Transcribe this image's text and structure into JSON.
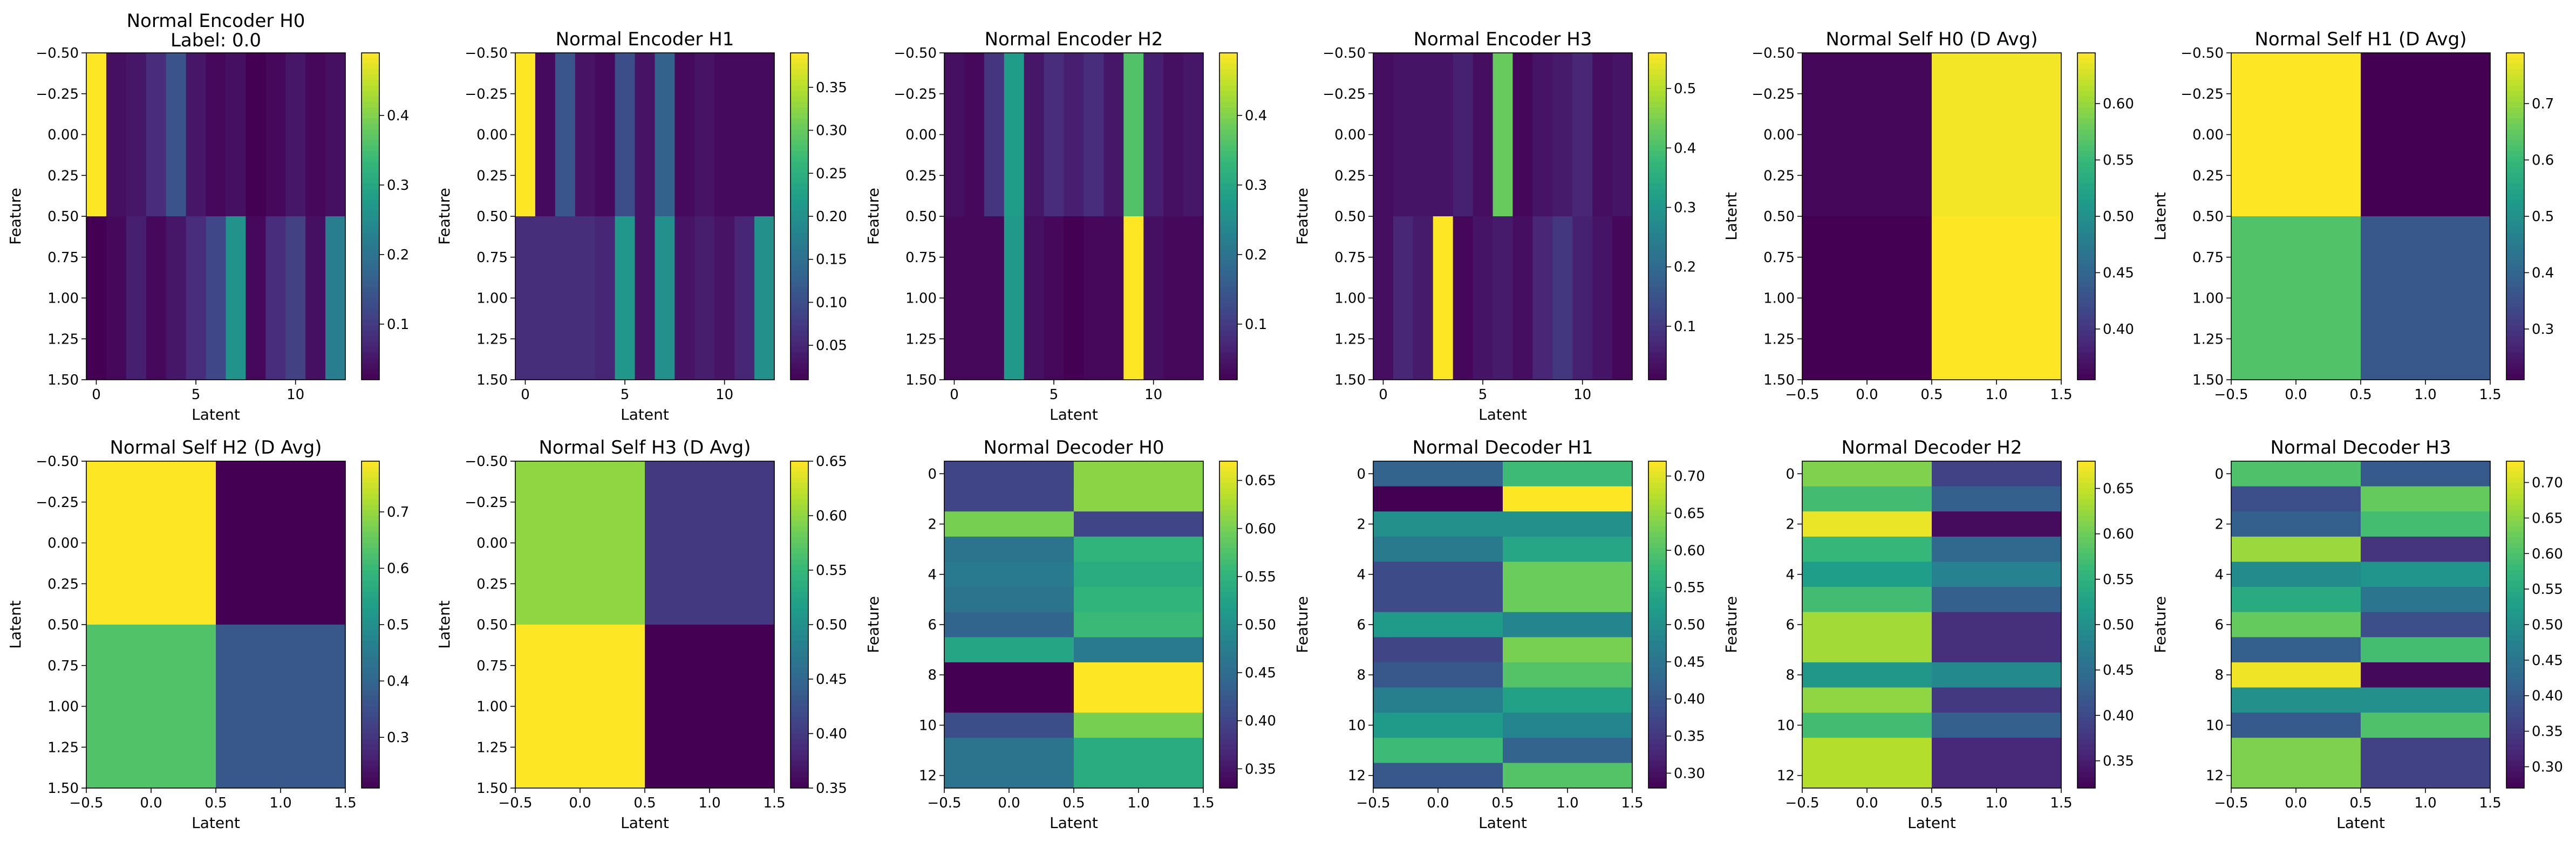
{
  "chart_data": [
    {
      "type": "heatmap",
      "title": "Normal Encoder H0",
      "subtitle": "Label: 0.0",
      "xlabel": "Latent",
      "ylabel": "Feature",
      "xlim": [
        -0.5,
        12.5
      ],
      "ylim": [
        1.5,
        -0.5
      ],
      "xticks": [
        0,
        5,
        10
      ],
      "xticklabels": [
        "0",
        "5",
        "10"
      ],
      "yticks": [
        -0.5,
        -0.25,
        0,
        0.25,
        0.5,
        0.75,
        1,
        1.25,
        1.5
      ],
      "yticklabels": [
        "−0.50",
        "−0.25",
        "0.00",
        "0.25",
        "0.50",
        "0.75",
        "1.00",
        "1.25",
        "1.50"
      ],
      "values": [
        [
          0.49,
          0.04,
          0.05,
          0.08,
          0.14,
          0.05,
          0.03,
          0.04,
          0.02,
          0.03,
          0.05,
          0.03,
          0.04
        ],
        [
          0.02,
          0.03,
          0.06,
          0.03,
          0.05,
          0.08,
          0.12,
          0.26,
          0.03,
          0.08,
          0.11,
          0.04,
          0.22
        ]
      ],
      "vmin": 0.02,
      "vmax": 0.49,
      "cbticks": [
        0.1,
        0.2,
        0.3,
        0.4
      ],
      "cblabels": [
        "0.1",
        "0.2",
        "0.3",
        "0.4"
      ]
    },
    {
      "type": "heatmap",
      "title": "Normal Encoder H1",
      "xlabel": "Latent",
      "ylabel": "Feature",
      "xlim": [
        -0.5,
        12.5
      ],
      "ylim": [
        1.5,
        -0.5
      ],
      "xticks": [
        0,
        5,
        10
      ],
      "xticklabels": [
        "0",
        "5",
        "10"
      ],
      "yticks": [
        -0.5,
        -0.25,
        0,
        0.25,
        0.5,
        0.75,
        1,
        1.25,
        1.5
      ],
      "yticklabels": [
        "−0.50",
        "−0.25",
        "0.00",
        "0.25",
        "0.50",
        "0.75",
        "1.00",
        "1.25",
        "1.50"
      ],
      "values": [
        [
          0.39,
          0.02,
          0.11,
          0.03,
          0.02,
          0.1,
          0.03,
          0.13,
          0.02,
          0.03,
          0.02,
          0.02,
          0.02
        ],
        [
          0.06,
          0.06,
          0.06,
          0.06,
          0.05,
          0.21,
          0.03,
          0.2,
          0.03,
          0.04,
          0.03,
          0.05,
          0.2
        ]
      ],
      "vmin": 0.01,
      "vmax": 0.39,
      "cbticks": [
        0.05,
        0.1,
        0.15,
        0.2,
        0.25,
        0.3,
        0.35
      ],
      "cblabels": [
        "0.05",
        "0.10",
        "0.15",
        "0.20",
        "0.25",
        "0.30",
        "0.35"
      ]
    },
    {
      "type": "heatmap",
      "title": "Normal Encoder H2",
      "xlabel": "Latent",
      "ylabel": "Feature",
      "xlim": [
        -0.5,
        12.5
      ],
      "ylim": [
        1.5,
        -0.5
      ],
      "xticks": [
        0,
        5,
        10
      ],
      "xticklabels": [
        "0",
        "5",
        "10"
      ],
      "yticks": [
        -0.5,
        -0.25,
        0,
        0.25,
        0.5,
        0.75,
        1,
        1.25,
        1.5
      ],
      "yticklabels": [
        "−0.50",
        "−0.25",
        "0.00",
        "0.25",
        "0.50",
        "0.75",
        "1.00",
        "1.25",
        "1.50"
      ],
      "values": [
        [
          0.04,
          0.03,
          0.09,
          0.28,
          0.05,
          0.08,
          0.06,
          0.08,
          0.05,
          0.36,
          0.06,
          0.04,
          0.05
        ],
        [
          0.03,
          0.03,
          0.03,
          0.27,
          0.04,
          0.03,
          0.02,
          0.03,
          0.03,
          0.49,
          0.04,
          0.03,
          0.03
        ]
      ],
      "vmin": 0.02,
      "vmax": 0.49,
      "cbticks": [
        0.1,
        0.2,
        0.3,
        0.4
      ],
      "cblabels": [
        "0.1",
        "0.2",
        "0.3",
        "0.4"
      ]
    },
    {
      "type": "heatmap",
      "title": "Normal Encoder H3",
      "xlabel": "Latent",
      "ylabel": "Feature",
      "xlim": [
        -0.5,
        12.5
      ],
      "ylim": [
        1.5,
        -0.5
      ],
      "xticks": [
        0,
        5,
        10
      ],
      "xticklabels": [
        "0",
        "5",
        "10"
      ],
      "yticks": [
        -0.5,
        -0.25,
        0,
        0.25,
        0.5,
        0.75,
        1,
        1.25,
        1.5
      ],
      "yticklabels": [
        "−0.50",
        "−0.25",
        "0.00",
        "0.25",
        "0.50",
        "0.75",
        "1.00",
        "1.25",
        "1.50"
      ],
      "values": [
        [
          0.03,
          0.04,
          0.04,
          0.04,
          0.06,
          0.03,
          0.43,
          0.02,
          0.04,
          0.05,
          0.07,
          0.03,
          0.04
        ],
        [
          0.03,
          0.07,
          0.05,
          0.56,
          0.02,
          0.04,
          0.05,
          0.03,
          0.07,
          0.1,
          0.06,
          0.04,
          0.02
        ]
      ],
      "vmin": 0.01,
      "vmax": 0.56,
      "cbticks": [
        0.1,
        0.2,
        0.3,
        0.4,
        0.5
      ],
      "cblabels": [
        "0.1",
        "0.2",
        "0.3",
        "0.4",
        "0.5"
      ]
    },
    {
      "type": "heatmap",
      "title": "Normal Self H0 (D Avg)",
      "xlabel": "",
      "ylabel": "Latent",
      "xlim": [
        -0.5,
        1.5
      ],
      "ylim": [
        1.5,
        -0.5
      ],
      "xticks": [
        -0.5,
        0,
        0.5,
        1,
        1.5
      ],
      "xticklabels": [
        "−0.5",
        "0.0",
        "0.5",
        "1.0",
        "1.5"
      ],
      "yticks": [
        -0.5,
        -0.25,
        0,
        0.25,
        0.5,
        0.75,
        1,
        1.25,
        1.5
      ],
      "yticklabels": [
        "−0.50",
        "−0.25",
        "0.00",
        "0.25",
        "0.50",
        "0.75",
        "1.00",
        "1.25",
        "1.50"
      ],
      "values": [
        [
          0.36,
          0.64
        ],
        [
          0.355,
          0.645
        ]
      ],
      "vmin": 0.355,
      "vmax": 0.645,
      "cbticks": [
        0.4,
        0.45,
        0.5,
        0.55,
        0.6
      ],
      "cblabels": [
        "0.40",
        "0.45",
        "0.50",
        "0.55",
        "0.60"
      ]
    },
    {
      "type": "heatmap",
      "title": "Normal Self H1 (D Avg)",
      "xlabel": "",
      "ylabel": "Latent",
      "xlim": [
        -0.5,
        1.5
      ],
      "ylim": [
        1.5,
        -0.5
      ],
      "xticks": [
        -0.5,
        0,
        0.5,
        1,
        1.5
      ],
      "xticklabels": [
        "−0.5",
        "0.0",
        "0.5",
        "1.0",
        "1.5"
      ],
      "yticks": [
        -0.5,
        -0.25,
        0,
        0.25,
        0.5,
        0.75,
        1,
        1.25,
        1.5
      ],
      "yticklabels": [
        "−0.50",
        "−0.25",
        "0.00",
        "0.25",
        "0.50",
        "0.75",
        "1.00",
        "1.25",
        "1.50"
      ],
      "values": [
        [
          0.79,
          0.21
        ],
        [
          0.63,
          0.37
        ]
      ],
      "vmin": 0.21,
      "vmax": 0.79,
      "cbticks": [
        0.3,
        0.4,
        0.5,
        0.6,
        0.7
      ],
      "cblabels": [
        "0.3",
        "0.4",
        "0.5",
        "0.6",
        "0.7"
      ]
    },
    {
      "type": "heatmap",
      "title": "Normal Self H2 (D Avg)",
      "xlabel": "Latent",
      "ylabel": "Latent",
      "xlim": [
        -0.5,
        1.5
      ],
      "ylim": [
        1.5,
        -0.5
      ],
      "xticks": [
        -0.5,
        0,
        0.5,
        1,
        1.5
      ],
      "xticklabels": [
        "−0.5",
        "0.0",
        "0.5",
        "1.0",
        "1.5"
      ],
      "yticks": [
        -0.5,
        -0.25,
        0,
        0.25,
        0.5,
        0.75,
        1,
        1.25,
        1.5
      ],
      "yticklabels": [
        "−0.50",
        "−0.25",
        "0.00",
        "0.25",
        "0.50",
        "0.75",
        "1.00",
        "1.25",
        "1.50"
      ],
      "values": [
        [
          0.79,
          0.21
        ],
        [
          0.63,
          0.37
        ]
      ],
      "vmin": 0.21,
      "vmax": 0.79,
      "cbticks": [
        0.3,
        0.4,
        0.5,
        0.6,
        0.7
      ],
      "cblabels": [
        "0.3",
        "0.4",
        "0.5",
        "0.6",
        "0.7"
      ]
    },
    {
      "type": "heatmap",
      "title": "Normal Self H3 (D Avg)",
      "xlabel": "Latent",
      "ylabel": "Latent",
      "xlim": [
        -0.5,
        1.5
      ],
      "ylim": [
        1.5,
        -0.5
      ],
      "xticks": [
        -0.5,
        0,
        0.5,
        1,
        1.5
      ],
      "xticklabels": [
        "−0.5",
        "0.0",
        "0.5",
        "1.0",
        "1.5"
      ],
      "yticks": [
        -0.5,
        -0.25,
        0,
        0.25,
        0.5,
        0.75,
        1,
        1.25,
        1.5
      ],
      "yticklabels": [
        "−0.50",
        "−0.25",
        "0.00",
        "0.25",
        "0.50",
        "0.75",
        "1.00",
        "1.25",
        "1.50"
      ],
      "values": [
        [
          0.6,
          0.4
        ],
        [
          0.65,
          0.35
        ]
      ],
      "vmin": 0.35,
      "vmax": 0.65,
      "cbticks": [
        0.35,
        0.4,
        0.45,
        0.5,
        0.55,
        0.6,
        0.65
      ],
      "cblabels": [
        "0.35",
        "0.40",
        "0.45",
        "0.50",
        "0.55",
        "0.60",
        "0.65"
      ]
    },
    {
      "type": "heatmap",
      "title": "Normal Decoder H0",
      "xlabel": "Latent",
      "ylabel": "Feature",
      "xlim": [
        -0.5,
        1.5
      ],
      "ylim": [
        12.5,
        -0.5
      ],
      "xticks": [
        -0.5,
        0,
        0.5,
        1,
        1.5
      ],
      "xticklabels": [
        "−0.5",
        "0.0",
        "0.5",
        "1.0",
        "1.5"
      ],
      "yticks": [
        0,
        2,
        4,
        6,
        8,
        10,
        12
      ],
      "yticklabels": [
        "0",
        "2",
        "4",
        "6",
        "8",
        "10",
        "12"
      ],
      "values": [
        [
          0.4,
          0.61
        ],
        [
          0.4,
          0.61
        ],
        [
          0.6,
          0.4
        ],
        [
          0.46,
          0.55
        ],
        [
          0.47,
          0.54
        ],
        [
          0.46,
          0.55
        ],
        [
          0.44,
          0.56
        ],
        [
          0.53,
          0.47
        ],
        [
          0.33,
          0.67
        ],
        [
          0.33,
          0.67
        ],
        [
          0.41,
          0.6
        ],
        [
          0.46,
          0.54
        ],
        [
          0.46,
          0.54
        ]
      ],
      "vmin": 0.33,
      "vmax": 0.67,
      "cbticks": [
        0.35,
        0.4,
        0.45,
        0.5,
        0.55,
        0.6,
        0.65
      ],
      "cblabels": [
        "0.35",
        "0.40",
        "0.45",
        "0.50",
        "0.55",
        "0.60",
        "0.65"
      ]
    },
    {
      "type": "heatmap",
      "title": "Normal Decoder H1",
      "xlabel": "Latent",
      "ylabel": "Feature",
      "xlim": [
        -0.5,
        1.5
      ],
      "ylim": [
        12.5,
        -0.5
      ],
      "xticks": [
        -0.5,
        0,
        0.5,
        1,
        1.5
      ],
      "xticklabels": [
        "−0.5",
        "0.0",
        "0.5",
        "1.0",
        "1.5"
      ],
      "yticks": [
        0,
        2,
        4,
        6,
        8,
        10,
        12
      ],
      "yticklabels": [
        "0",
        "2",
        "4",
        "6",
        "8",
        "10",
        "12"
      ],
      "values": [
        [
          0.42,
          0.58
        ],
        [
          0.28,
          0.72
        ],
        [
          0.5,
          0.5
        ],
        [
          0.46,
          0.54
        ],
        [
          0.38,
          0.62
        ],
        [
          0.38,
          0.62
        ],
        [
          0.52,
          0.48
        ],
        [
          0.37,
          0.63
        ],
        [
          0.4,
          0.6
        ],
        [
          0.47,
          0.53
        ],
        [
          0.52,
          0.48
        ],
        [
          0.58,
          0.42
        ],
        [
          0.4,
          0.6
        ]
      ],
      "vmin": 0.28,
      "vmax": 0.72,
      "cbticks": [
        0.3,
        0.35,
        0.4,
        0.45,
        0.5,
        0.55,
        0.6,
        0.65,
        0.7
      ],
      "cblabels": [
        "0.30",
        "0.35",
        "0.40",
        "0.45",
        "0.50",
        "0.55",
        "0.60",
        "0.65",
        "0.70"
      ]
    },
    {
      "type": "heatmap",
      "title": "Normal Decoder H2",
      "xlabel": "Latent",
      "ylabel": "Feature",
      "xlim": [
        -0.5,
        1.5
      ],
      "ylim": [
        12.5,
        -0.5
      ],
      "xticks": [
        -0.5,
        0,
        0.5,
        1,
        1.5
      ],
      "xticklabels": [
        "−0.5",
        "0.0",
        "0.5",
        "1.0",
        "1.5"
      ],
      "yticks": [
        0,
        2,
        4,
        6,
        8,
        10,
        12
      ],
      "yticklabels": [
        "0",
        "2",
        "4",
        "6",
        "8",
        "10",
        "12"
      ],
      "values": [
        [
          0.61,
          0.39
        ],
        [
          0.57,
          0.43
        ],
        [
          0.67,
          0.33
        ],
        [
          0.56,
          0.44
        ],
        [
          0.52,
          0.48
        ],
        [
          0.57,
          0.43
        ],
        [
          0.63,
          0.37
        ],
        [
          0.63,
          0.37
        ],
        [
          0.51,
          0.49
        ],
        [
          0.62,
          0.38
        ],
        [
          0.57,
          0.43
        ],
        [
          0.64,
          0.36
        ],
        [
          0.64,
          0.36
        ]
      ],
      "vmin": 0.32,
      "vmax": 0.68,
      "cbticks": [
        0.35,
        0.4,
        0.45,
        0.5,
        0.55,
        0.6,
        0.65
      ],
      "cblabels": [
        "0.35",
        "0.40",
        "0.45",
        "0.50",
        "0.55",
        "0.60",
        "0.65"
      ]
    },
    {
      "type": "heatmap",
      "title": "Normal Decoder H3",
      "xlabel": "Latent",
      "ylabel": "Feature",
      "xlim": [
        -0.5,
        1.5
      ],
      "ylim": [
        12.5,
        -0.5
      ],
      "xticks": [
        -0.5,
        0,
        0.5,
        1,
        1.5
      ],
      "xticklabels": [
        "−0.5",
        "0.0",
        "0.5",
        "1.0",
        "1.5"
      ],
      "yticks": [
        0,
        2,
        4,
        6,
        8,
        10,
        12
      ],
      "yticklabels": [
        "0",
        "2",
        "4",
        "6",
        "8",
        "10",
        "12"
      ],
      "values": [
        [
          0.6,
          0.4
        ],
        [
          0.38,
          0.62
        ],
        [
          0.41,
          0.59
        ],
        [
          0.66,
          0.34
        ],
        [
          0.49,
          0.51
        ],
        [
          0.55,
          0.45
        ],
        [
          0.62,
          0.38
        ],
        [
          0.41,
          0.59
        ],
        [
          0.72,
          0.28
        ],
        [
          0.5,
          0.5
        ],
        [
          0.4,
          0.6
        ],
        [
          0.64,
          0.36
        ],
        [
          0.64,
          0.36
        ]
      ],
      "vmin": 0.27,
      "vmax": 0.73,
      "cbticks": [
        0.3,
        0.35,
        0.4,
        0.45,
        0.5,
        0.55,
        0.6,
        0.65,
        0.7
      ],
      "cblabels": [
        "0.30",
        "0.35",
        "0.40",
        "0.45",
        "0.50",
        "0.55",
        "0.60",
        "0.65",
        "0.70"
      ]
    }
  ]
}
